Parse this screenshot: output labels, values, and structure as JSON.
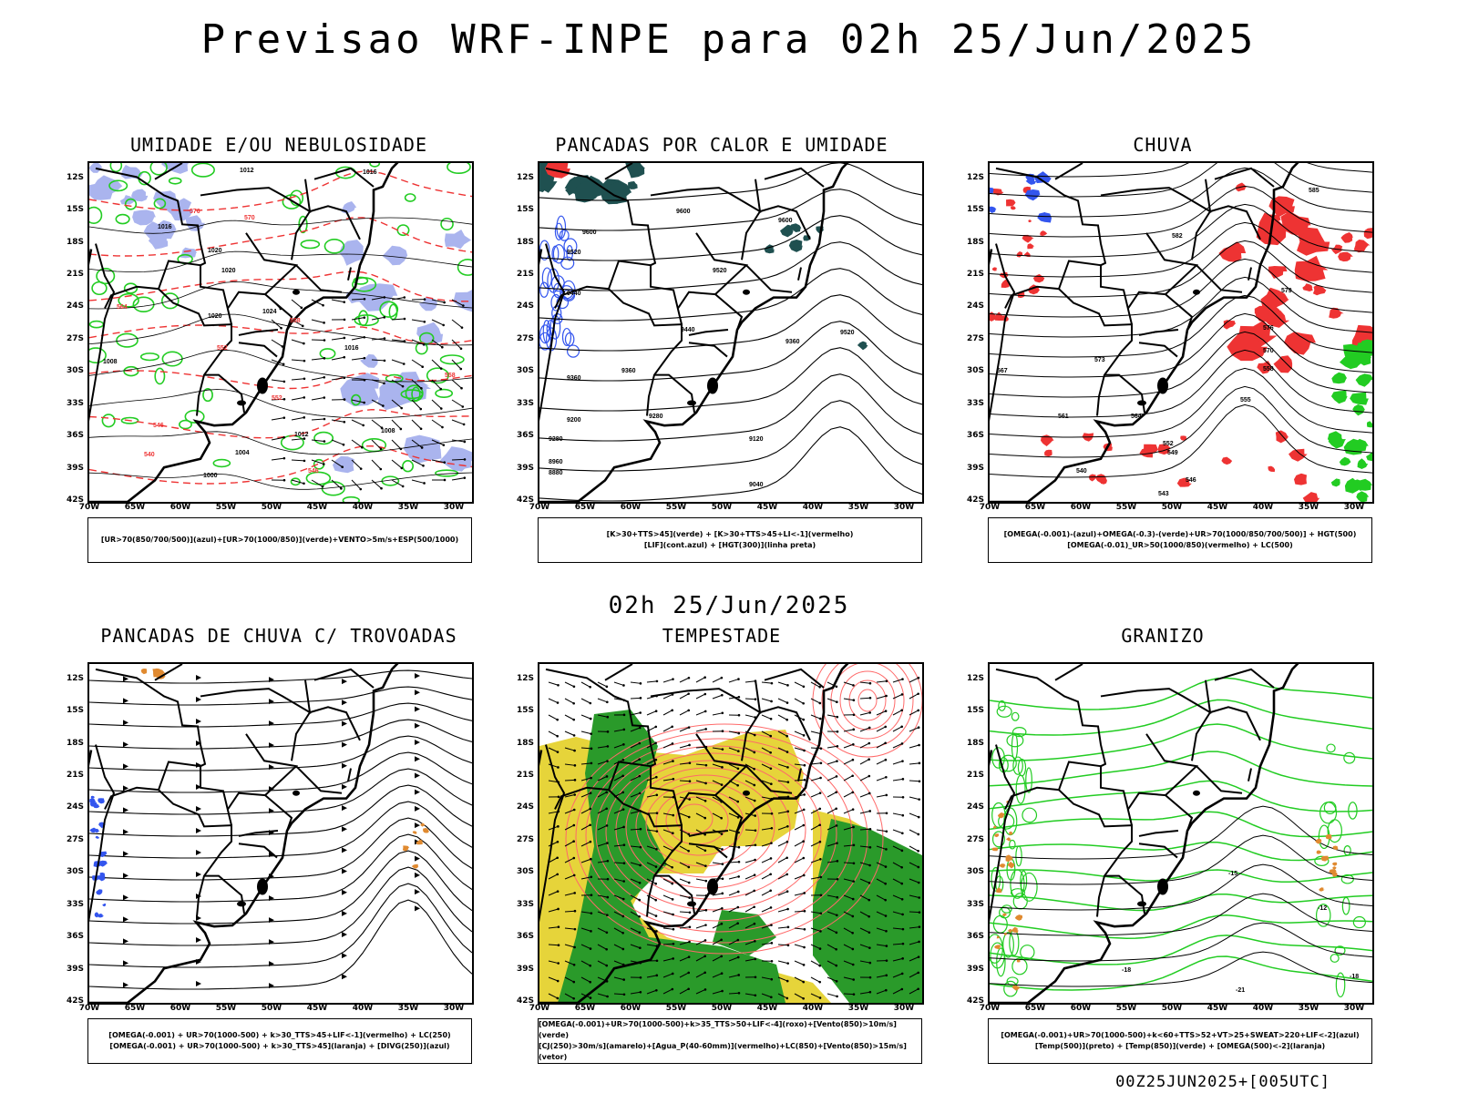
{
  "title": "Previsao WRF-INPE  para 02h 25/Jun/2025",
  "mid_time": "02h 25/Jun/2025",
  "footer": "00Z25JUN2025+[005UTC]",
  "lat_labels": [
    "12S",
    "15S",
    "18S",
    "21S",
    "24S",
    "27S",
    "30S",
    "33S",
    "36S",
    "39S",
    "42S"
  ],
  "lon_labels": [
    "70W",
    "65W",
    "60W",
    "55W",
    "50W",
    "45W",
    "40W",
    "35W",
    "30W"
  ],
  "panels": [
    {
      "title": "UMIDADE E/OU NEBULOSIDADE",
      "legend": [
        "[UR>70(850/700/500)](azul)+[UR>70(1000/850)](verde)+VENTO>5m/s+ESP(500/1000)"
      ],
      "contour_labels": [
        "1012",
        "1016",
        "1016",
        "1020",
        "1020",
        "1020",
        "1024",
        "1016",
        "1012",
        "1008",
        "1004",
        "1000",
        "1008"
      ],
      "red_labels": [
        "570",
        "570",
        "564",
        "558",
        "552",
        "546",
        "540",
        "558",
        "552",
        "546"
      ]
    },
    {
      "title": "PANCADAS POR CALOR E UMIDADE",
      "legend": [
        "[K>30+TTS>45](verde) + [K>30+TTS>45+LI<-1](vermelho)",
        "[LIF](cont.azul) + [HGT(300)](linha preta)"
      ],
      "contour_labels": [
        "9600",
        "9600",
        "9600",
        "9520",
        "9520",
        "9520",
        "9440",
        "9440",
        "9360",
        "9360",
        "9360",
        "9280",
        "9280",
        "9200",
        "9120",
        "9040",
        "8960",
        "8880"
      ]
    },
    {
      "title": "CHUVA",
      "legend": [
        "[OMEGA(-0.001)-(azul)+OMEGA(-0.3)-(verde)+UR>70(1000/850/700/500)] + HGT(500)",
        "[OMEGA(-0.01)_UR>50(1000/850)(vermelho) + LC(500)"
      ],
      "contour_labels": [
        "585",
        "582",
        "579",
        "576",
        "573",
        "570",
        "567",
        "564",
        "561",
        "558",
        "555",
        "552",
        "549",
        "546",
        "543",
        "540"
      ]
    },
    {
      "title": "PANCADAS DE CHUVA C/ TROVOADAS",
      "legend": [
        "[OMEGA(-0.001) + UR>70(1000-500) + k>30_TTS>45+LIF<-1](vermelho) + LC(250)",
        "[OMEGA(-0.001) + UR>70(1000-500) + k>30_TTS>45](laranja) + [DIVG(250)](azul)"
      ]
    },
    {
      "title": "TEMPESTADE",
      "legend": [
        "[OMEGA(-0.001)+UR>70(1000-500)+k>35_TTS>50+LIF<-4](roxo)+[Vento(850)>10m/s](verde)",
        "[CJ(250)>30m/s](amarelo)+[Agua_P(40-60mm)](vermelho)+LC(850)+[Vento(850)>15m/s](vetor)"
      ]
    },
    {
      "title": "GRANIZO",
      "legend": [
        "[OMEGA(-0.001)+UR>70(1000-500)+k<60+TTS>52+VT>25+SWEAT>220+LIF<-2](azul)",
        "[Temp(500)](preto) + [Temp(850)](verde) + [OMEGA(500)<-2](laranja)"
      ],
      "contour_labels": [
        "-15",
        "-18",
        "-18",
        "-12",
        "-21"
      ]
    }
  ],
  "colors": {
    "black": "#000000",
    "green": "#22cc22",
    "red": "#ee3333",
    "blue": "#3355ee",
    "lightblue": "#aab4ee",
    "yellow": "#e6d43a",
    "darkgreen": "#2a9a2a",
    "orange": "#e08a30",
    "teal": "#1f5050",
    "pink": "#ff6a6a"
  }
}
